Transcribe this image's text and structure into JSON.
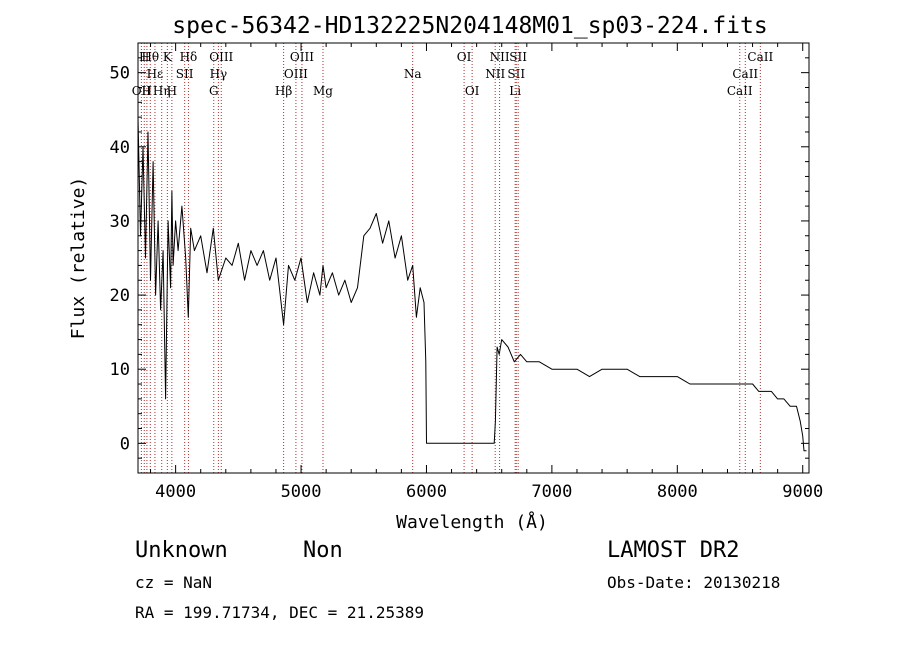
{
  "chart_data": {
    "type": "line",
    "title": "spec-56342-HD132225N204148M01_sp03-224.fits",
    "xlabel": "Wavelength (Å)",
    "ylabel": "Flux (relative)",
    "xlim": [
      3700,
      9050
    ],
    "ylim": [
      -4,
      54
    ],
    "xticks": [
      4000,
      5000,
      6000,
      7000,
      8000,
      9000
    ],
    "yticks": [
      0,
      10,
      20,
      30,
      40,
      50
    ],
    "grid": false,
    "series": [
      {
        "x": [
          3700,
          3720,
          3740,
          3760,
          3780,
          3800,
          3820,
          3840,
          3860,
          3880,
          3900,
          3920,
          3940,
          3960,
          3970,
          3980,
          4000,
          4020,
          4050,
          4080,
          4101,
          4120,
          4150,
          4200,
          4250,
          4300,
          4340,
          4400,
          4450,
          4500,
          4550,
          4600,
          4650,
          4700,
          4750,
          4800,
          4861,
          4900,
          4950,
          5000,
          5050,
          5100,
          5150,
          5175,
          5200,
          5250,
          5300,
          5350,
          5400,
          5450,
          5500,
          5550,
          5600,
          5650,
          5700,
          5750,
          5800,
          5850,
          5890,
          5920,
          5950,
          5980,
          5995,
          6000,
          6010,
          6100,
          6200,
          6300,
          6400,
          6500,
          6540,
          6550,
          6563,
          6580,
          6600,
          6650,
          6700,
          6750,
          6800,
          6900,
          7000,
          7100,
          7200,
          7300,
          7400,
          7500,
          7600,
          7700,
          7800,
          7900,
          8000,
          8100,
          8200,
          8300,
          8400,
          8450,
          8500,
          8550,
          8600,
          8650,
          8700,
          8750,
          8800,
          8850,
          8900,
          8950,
          8980,
          9000,
          9010,
          9030
        ],
        "y": [
          44,
          28,
          40,
          25,
          42,
          22,
          38,
          20,
          30,
          18,
          26,
          6,
          30,
          21,
          34,
          24,
          30,
          26,
          32,
          25,
          17,
          29,
          26,
          28,
          23,
          29,
          22,
          25,
          24,
          27,
          22,
          26,
          24,
          26,
          22,
          25,
          16,
          24,
          22,
          25,
          19,
          23,
          20,
          24,
          21,
          23,
          20,
          22,
          19,
          21,
          28,
          29,
          31,
          27,
          30,
          25,
          28,
          22,
          24,
          17,
          21,
          19,
          11,
          0,
          0,
          0,
          0,
          0,
          0,
          0,
          0,
          3,
          13,
          12,
          14,
          13,
          11,
          12,
          11,
          11,
          10,
          10,
          10,
          9,
          10,
          10,
          10,
          9,
          9,
          9,
          9,
          8,
          8,
          8,
          8,
          8,
          8,
          8,
          8,
          7,
          7,
          7,
          6,
          6,
          5,
          5,
          3,
          1,
          -1,
          -1
        ]
      }
    ],
    "line_markers": [
      {
        "wl": 3727,
        "label": "OII",
        "row": 3
      },
      {
        "wl": 3750,
        "label": "H",
        "row": 1
      },
      {
        "wl": 3771,
        "label": "H",
        "row": 3
      },
      {
        "wl": 3798,
        "label": "Hθ",
        "row": 1
      },
      {
        "wl": 3835,
        "label": "Hε",
        "row": 2
      },
      {
        "wl": 3889,
        "label": "Hη",
        "row": 3
      },
      {
        "wl": 3934,
        "label": "K",
        "row": 1
      },
      {
        "wl": 3970,
        "label": "H",
        "row": 3
      },
      {
        "wl": 4072,
        "label": "SII",
        "row": 2
      },
      {
        "wl": 4102,
        "label": "Hδ",
        "row": 1
      },
      {
        "wl": 4304,
        "label": "G",
        "row": 3
      },
      {
        "wl": 4341,
        "label": "Hγ",
        "row": 2
      },
      {
        "wl": 4364,
        "label": "OIII",
        "row": 1
      },
      {
        "wl": 4861,
        "label": "Hβ",
        "row": 3
      },
      {
        "wl": 4959,
        "label": "OIII",
        "row": 2
      },
      {
        "wl": 5007,
        "label": "OIII",
        "row": 1
      },
      {
        "wl": 5175,
        "label": "Mg",
        "row": 3
      },
      {
        "wl": 5890,
        "label": "Na",
        "row": 2
      },
      {
        "wl": 6300,
        "label": "OI",
        "row": 1
      },
      {
        "wl": 6364,
        "label": "OI",
        "row": 3
      },
      {
        "wl": 6548,
        "label": "NII",
        "row": 2
      },
      {
        "wl": 6583,
        "label": "NII",
        "row": 1
      },
      {
        "wl": 6707,
        "label": "Li",
        "row": 3
      },
      {
        "wl": 6716,
        "label": "SII",
        "row": 2
      },
      {
        "wl": 6731,
        "label": "SII",
        "row": 1
      },
      {
        "wl": 8498,
        "label": "CaII",
        "row": 3
      },
      {
        "wl": 8542,
        "label": "CaII",
        "row": 2
      },
      {
        "wl": 8662,
        "label": "CaII",
        "row": 1
      }
    ]
  },
  "info": {
    "object_class": "Unknown",
    "subclass": "Non",
    "survey": "LAMOST DR2",
    "cz": "cz = NaN",
    "obs_date": "Obs-Date: 20130218",
    "coords": "RA = 199.71734, DEC =  21.25389"
  }
}
